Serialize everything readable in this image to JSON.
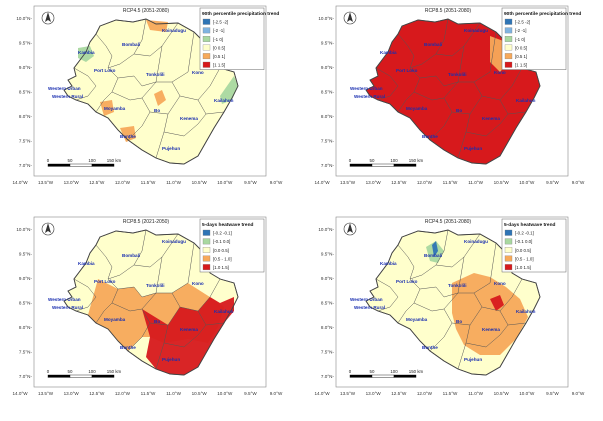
{
  "places": {
    "kambia": "Kambia",
    "bombali": "Bombali",
    "koinadugu": "Koinadugu",
    "port_loko": "Port Loko",
    "tonkolili": "Tonkolili",
    "kono": "Kono",
    "western_urban": "Western Urban",
    "western_rural": "Western Rural",
    "moyamba": "Moyamba",
    "bo": "Bo",
    "kenema": "Kenema",
    "kailahun": "Kailahun",
    "bonthe": "Bonthe",
    "pujehun": "Pujehun"
  },
  "lat_ticks": [
    "10.0°N-",
    "9.5°N-",
    "9.0°N-",
    "8.5°N-",
    "8.0°N-",
    "7.5°N-",
    "7.0°N-"
  ],
  "lon_ticks": [
    "14.0°W",
    "13.5°W",
    "13.0°W",
    "12.5°W",
    "12.0°W",
    "11.5°W",
    "11.0°W",
    "10.5°W",
    "10.0°W",
    "9.5°W",
    "9.0°W"
  ],
  "scale_labels": [
    "0",
    "50",
    "100",
    "150 km"
  ],
  "colors": {
    "c1": "#2e74b5",
    "c2": "#a9d8a0",
    "c3": "#ffffcc",
    "c4": "#f7a95a",
    "c5": "#d7191c",
    "land": "#ffffcc",
    "outline": "#555555",
    "place_text": "#1a2fb0"
  },
  "panels": [
    {
      "id": "tl",
      "title": "RCP4.5 (2051-2080)",
      "legend_title": "90th percentile precipitation trend",
      "legend_items": [
        "[-2.5 -2]",
        "[-2 -1]",
        "[-1 0]",
        "[0 0.5]",
        "[0.5 1]",
        "[1 1.5]"
      ],
      "legend_colors": [
        "#2e74b5",
        "#7fb3e0",
        "#a9d8a0",
        "#ffffcc",
        "#f7a95a",
        "#d7191c"
      ],
      "base_fill": "#ffffcc"
    },
    {
      "id": "tr",
      "title": "RCP8.5 (2051-2080)",
      "legend_title": "90th percentile precipitation trend",
      "legend_items": [
        "[-2.5 -2]",
        "[-2 -1]",
        "[-1 0]",
        "[0 0.5]",
        "[0.5 1]",
        "[1 1.5]"
      ],
      "legend_colors": [
        "#2e74b5",
        "#7fb3e0",
        "#a9d8a0",
        "#ffffcc",
        "#f7a95a",
        "#d7191c"
      ],
      "base_fill": "#d7191c"
    },
    {
      "id": "bl",
      "title": "RCP8.5 (2021-2050)",
      "legend_title": "5-days heatwave trend",
      "legend_items": [
        "[-0.2 -0.1]",
        "[-0.1 0.0]",
        "[0.0 0.5]",
        "[0.5 - 1.0]",
        "[1.0 1.5]"
      ],
      "legend_colors": [
        "#2e74b5",
        "#a9d8a0",
        "#ffffcc",
        "#f7a95a",
        "#d7191c"
      ],
      "base_fill": "#ffffcc"
    },
    {
      "id": "br",
      "title": "RCP4.5 (2051-2080)",
      "legend_title": "5-days heatwave trend",
      "legend_items": [
        "[-0.2 -0.1]",
        "[-0.1 0.0]",
        "[0.0 0.5]",
        "[0.5 - 1.0]",
        "[1.0 1.5]"
      ],
      "legend_colors": [
        "#2e74b5",
        "#a9d8a0",
        "#ffffcc",
        "#f7a95a",
        "#d7191c"
      ],
      "base_fill": "#ffffcc"
    }
  ]
}
